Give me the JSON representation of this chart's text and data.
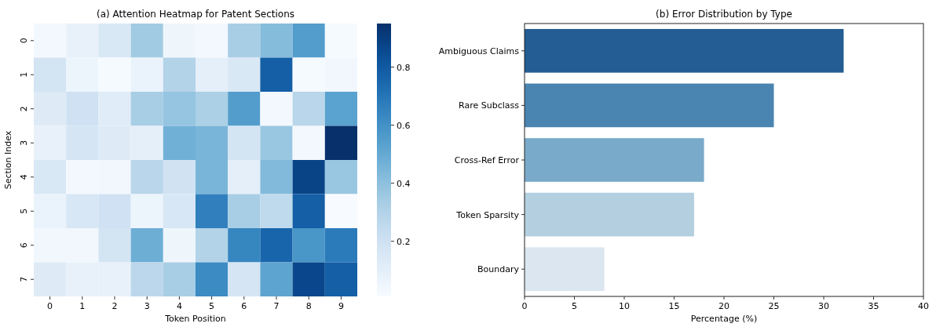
{
  "chart_data": [
    {
      "type": "heatmap",
      "title": "(a) Attention Heatmap for Patent Sections",
      "xlabel": "Token Position",
      "ylabel": "Section Index",
      "categories": [
        "0",
        "1",
        "2",
        "3",
        "4",
        "5",
        "6",
        "7",
        "8",
        "9"
      ],
      "y_categories": [
        "0",
        "1",
        "2",
        "3",
        "4",
        "5",
        "6",
        "7"
      ],
      "cells": [
        [
          0.03,
          0.08,
          0.15,
          0.35,
          0.05,
          0.03,
          0.33,
          0.42,
          0.55,
          0.02
        ],
        [
          0.18,
          0.06,
          0.02,
          0.07,
          0.3,
          0.1,
          0.15,
          0.78,
          0.02,
          0.04
        ],
        [
          0.13,
          0.2,
          0.12,
          0.33,
          0.38,
          0.32,
          0.55,
          0.03,
          0.28,
          0.53
        ],
        [
          0.08,
          0.17,
          0.13,
          0.1,
          0.47,
          0.45,
          0.18,
          0.37,
          0.03,
          0.95
        ],
        [
          0.15,
          0.03,
          0.04,
          0.28,
          0.19,
          0.45,
          0.1,
          0.43,
          0.88,
          0.37
        ],
        [
          0.07,
          0.16,
          0.2,
          0.06,
          0.16,
          0.66,
          0.33,
          0.26,
          0.78,
          0.01
        ],
        [
          0.04,
          0.04,
          0.18,
          0.48,
          0.05,
          0.3,
          0.64,
          0.76,
          0.58,
          0.68
        ],
        [
          0.13,
          0.08,
          0.08,
          0.27,
          0.33,
          0.62,
          0.17,
          0.52,
          0.87,
          0.78
        ]
      ],
      "clim": [
        0.01,
        0.95
      ],
      "cticks": [
        0.2,
        0.4,
        0.6,
        0.8
      ]
    },
    {
      "type": "bar",
      "orientation": "horizontal",
      "title": "(b) Error Distribution by Type",
      "xlabel": "Percentage (%)",
      "categories": [
        "Ambiguous Claims",
        "Rare Subclass",
        "Cross-Ref Error",
        "Token Sparsity",
        "Boundary"
      ],
      "values": [
        32,
        25,
        18,
        17,
        8
      ],
      "colors": [
        "#235d93",
        "#4a84b1",
        "#7aaac9",
        "#b4cfe0",
        "#dbe6f1"
      ],
      "xlim": [
        0,
        40
      ],
      "xticks": [
        0,
        5,
        10,
        15,
        20,
        25,
        30,
        35,
        40
      ]
    }
  ]
}
